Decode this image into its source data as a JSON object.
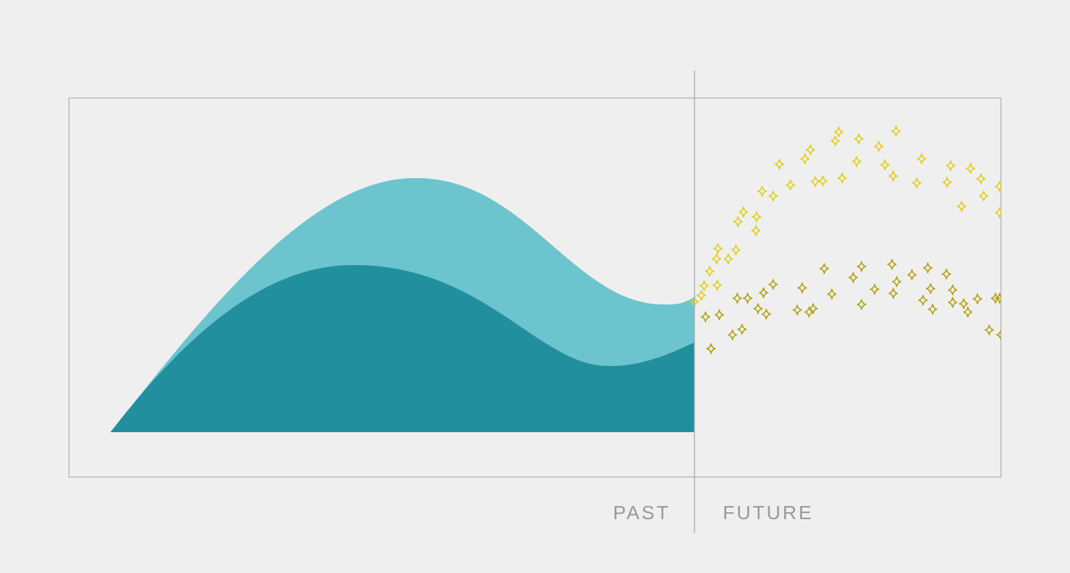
{
  "labels": {
    "past": "PAST",
    "future": "FUTURE"
  },
  "colors": {
    "background": "#efefef",
    "frame": "#b8b8b8",
    "divider": "#b0b0b0",
    "area_upper": "#6cc4ce",
    "area_lower": "#218f9e",
    "sparkle_upper": "#e3cf1c",
    "sparkle_lower": "#b5a21a"
  },
  "icons": {
    "sparkle": "four-point-star-icon"
  }
}
